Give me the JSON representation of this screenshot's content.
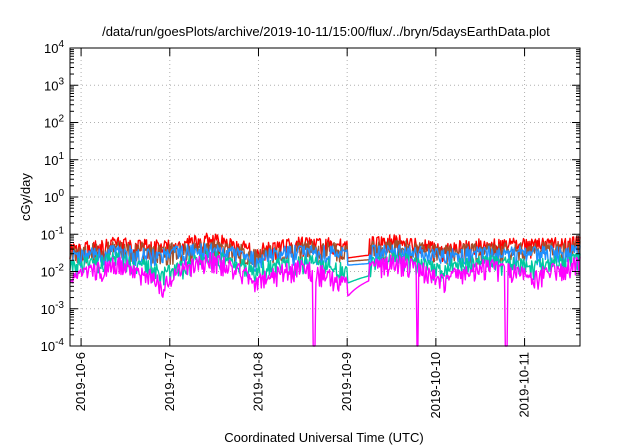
{
  "chart_data": {
    "type": "line",
    "title": "/data/run/goesPlots/archive/2019-10-11/15:00/flux/../bryn/5daysEarthData.plot",
    "xlabel": "Coordinated Universal Time (UTC)",
    "ylabel": "cGy/day",
    "yscale": "log",
    "ylim": [
      0.0001,
      10000
    ],
    "y_ticks": [
      {
        "value": 0.0001,
        "base": "10",
        "exp": "-4"
      },
      {
        "value": 0.001,
        "base": "10",
        "exp": "-3"
      },
      {
        "value": 0.01,
        "base": "10",
        "exp": "-2"
      },
      {
        "value": 0.1,
        "base": "10",
        "exp": "-1"
      },
      {
        "value": 1,
        "base": "10",
        "exp": "0"
      },
      {
        "value": 10,
        "base": "10",
        "exp": "1"
      },
      {
        "value": 100,
        "base": "10",
        "exp": "2"
      },
      {
        "value": 1000,
        "base": "10",
        "exp": "3"
      },
      {
        "value": 10000,
        "base": "10",
        "exp": "4"
      }
    ],
    "xlim": [
      "2019-10-05T21:00",
      "2019-10-11T15:00"
    ],
    "x_ticks": [
      {
        "label": "2019-10-6",
        "time": "2019-10-06T00:00"
      },
      {
        "label": "2019-10-7",
        "time": "2019-10-07T00:00"
      },
      {
        "label": "2019-10-8",
        "time": "2019-10-08T00:00"
      },
      {
        "label": "2019-10-9",
        "time": "2019-10-09T00:00"
      },
      {
        "label": "2019-10-10",
        "time": "2019-10-10T00:00"
      },
      {
        "label": "2019-10-11",
        "time": "2019-10-11T00:00"
      }
    ],
    "grid": true,
    "data_gap": {
      "start": "2019-10-09T00:00",
      "end": "2019-10-09T06:00"
    },
    "dropouts": [
      {
        "time": "2019-10-08T15:00",
        "series": "magenta"
      },
      {
        "time": "2019-10-09T19:00",
        "series": "magenta"
      },
      {
        "time": "2019-10-10T19:00",
        "series": "magenta"
      }
    ],
    "series": [
      {
        "color": "#ff0000",
        "values": [
          0.032,
          0.05,
          0.04,
          0.065,
          0.03,
          0.055,
          0.042,
          0.06,
          0.035,
          0.048,
          0.045,
          0.052
        ]
      },
      {
        "color": "#a0522d",
        "values": [
          0.028,
          0.038,
          0.032,
          0.045,
          0.026,
          0.04,
          0.034,
          0.042,
          0.03,
          0.036,
          0.035,
          0.04
        ]
      },
      {
        "color": "#1e90ff",
        "values": [
          0.022,
          0.03,
          0.026,
          0.035,
          0.021,
          0.032,
          0.027,
          0.033,
          0.024,
          0.029,
          0.028,
          0.031
        ]
      },
      {
        "color": "#00c8a0",
        "values": [
          0.012,
          0.02,
          0.008,
          0.022,
          0.01,
          0.018,
          0.009,
          0.02,
          0.011,
          0.017,
          0.012,
          0.019
        ]
      },
      {
        "color": "#ff00ff",
        "values": [
          0.005,
          0.015,
          0.004,
          0.02,
          0.005,
          0.012,
          0.004,
          0.018,
          0.005,
          0.013,
          0.006,
          0.016
        ]
      }
    ]
  }
}
